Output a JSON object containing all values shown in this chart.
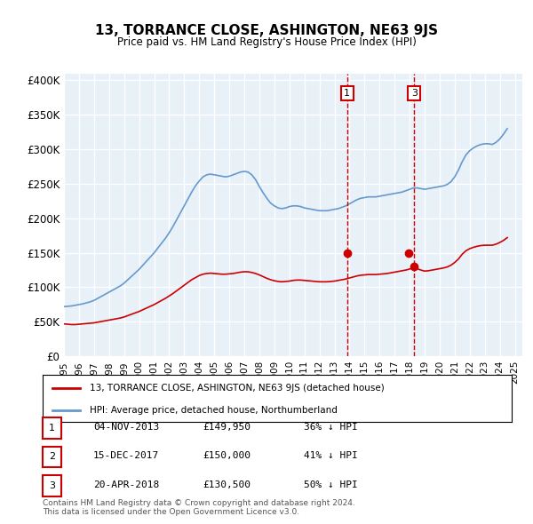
{
  "title": "13, TORRANCE CLOSE, ASHINGTON, NE63 9JS",
  "subtitle": "Price paid vs. HM Land Registry's House Price Index (HPI)",
  "ylabel_ticks": [
    "£0",
    "£50K",
    "£100K",
    "£150K",
    "£200K",
    "£250K",
    "£300K",
    "£350K",
    "£400K"
  ],
  "ytick_values": [
    0,
    50000,
    100000,
    150000,
    200000,
    250000,
    300000,
    350000,
    400000
  ],
  "ylim": [
    0,
    410000
  ],
  "xlim_start": 1995.0,
  "xlim_end": 2025.5,
  "background_color": "#e8f0f8",
  "plot_bg_color": "#e8f0f8",
  "grid_color": "#ffffff",
  "red_line_color": "#cc0000",
  "blue_line_color": "#6699cc",
  "annotation_color": "#cc0000",
  "vline_color": "#cc0000",
  "legend_label_red": "13, TORRANCE CLOSE, ASHINGTON, NE63 9JS (detached house)",
  "legend_label_blue": "HPI: Average price, detached house, Northumberland",
  "transactions": [
    {
      "num": 1,
      "date": "04-NOV-2013",
      "price": "£149,950",
      "pct": "36% ↓ HPI",
      "year": 2013.84
    },
    {
      "num": 2,
      "date": "15-DEC-2017",
      "price": "£150,000",
      "pct": "41% ↓ HPI",
      "year": 2017.95
    },
    {
      "num": 3,
      "date": "20-APR-2018",
      "price": "£130,500",
      "pct": "50% ↓ HPI",
      "year": 2018.3
    }
  ],
  "transaction_marker_values": [
    149950,
    150000,
    130500
  ],
  "footer": "Contains HM Land Registry data © Crown copyright and database right 2024.\nThis data is licensed under the Open Government Licence v3.0.",
  "hpi_x": [
    1995,
    1995.25,
    1995.5,
    1995.75,
    1996,
    1996.25,
    1996.5,
    1996.75,
    1997,
    1997.25,
    1997.5,
    1997.75,
    1998,
    1998.25,
    1998.5,
    1998.75,
    1999,
    1999.25,
    1999.5,
    1999.75,
    2000,
    2000.25,
    2000.5,
    2000.75,
    2001,
    2001.25,
    2001.5,
    2001.75,
    2002,
    2002.25,
    2002.5,
    2002.75,
    2003,
    2003.25,
    2003.5,
    2003.75,
    2004,
    2004.25,
    2004.5,
    2004.75,
    2005,
    2005.25,
    2005.5,
    2005.75,
    2006,
    2006.25,
    2006.5,
    2006.75,
    2007,
    2007.25,
    2007.5,
    2007.75,
    2008,
    2008.25,
    2008.5,
    2008.75,
    2009,
    2009.25,
    2009.5,
    2009.75,
    2010,
    2010.25,
    2010.5,
    2010.75,
    2011,
    2011.25,
    2011.5,
    2011.75,
    2012,
    2012.25,
    2012.5,
    2012.75,
    2013,
    2013.25,
    2013.5,
    2013.75,
    2014,
    2014.25,
    2014.5,
    2014.75,
    2015,
    2015.25,
    2015.5,
    2015.75,
    2016,
    2016.25,
    2016.5,
    2016.75,
    2017,
    2017.25,
    2017.5,
    2017.75,
    2018,
    2018.25,
    2018.5,
    2018.75,
    2019,
    2019.25,
    2019.5,
    2019.75,
    2020,
    2020.25,
    2020.5,
    2020.75,
    2021,
    2021.25,
    2021.5,
    2021.75,
    2022,
    2022.25,
    2022.5,
    2022.75,
    2023,
    2023.25,
    2023.5,
    2023.75,
    2024,
    2024.25,
    2024.5
  ],
  "hpi_y": [
    72000,
    72500,
    73000,
    74000,
    75000,
    76000,
    77500,
    79000,
    81000,
    84000,
    87000,
    90000,
    93000,
    96000,
    99000,
    102000,
    106000,
    111000,
    116000,
    121000,
    126000,
    132000,
    138000,
    144000,
    150000,
    157000,
    164000,
    171000,
    179000,
    188000,
    198000,
    208000,
    218000,
    228000,
    238000,
    247000,
    254000,
    260000,
    263000,
    264000,
    263000,
    262000,
    261000,
    260000,
    261000,
    263000,
    265000,
    267000,
    268000,
    267000,
    263000,
    256000,
    246000,
    237000,
    229000,
    222000,
    218000,
    215000,
    214000,
    215000,
    217000,
    218000,
    218000,
    217000,
    215000,
    214000,
    213000,
    212000,
    211000,
    211000,
    211000,
    212000,
    213000,
    214000,
    216000,
    218000,
    221000,
    224000,
    227000,
    229000,
    230000,
    231000,
    231000,
    231000,
    232000,
    233000,
    234000,
    235000,
    236000,
    237000,
    238000,
    240000,
    242000,
    244000,
    244000,
    243000,
    242000,
    243000,
    244000,
    245000,
    246000,
    247000,
    249000,
    253000,
    260000,
    270000,
    282000,
    292000,
    298000,
    302000,
    305000,
    307000,
    308000,
    308000,
    307000,
    310000,
    315000,
    322000,
    330000
  ],
  "red_x": [
    1995,
    1995.25,
    1995.5,
    1995.75,
    1996,
    1996.25,
    1996.5,
    1996.75,
    1997,
    1997.25,
    1997.5,
    1997.75,
    1998,
    1998.25,
    1998.5,
    1998.75,
    1999,
    1999.25,
    1999.5,
    1999.75,
    2000,
    2000.25,
    2000.5,
    2000.75,
    2001,
    2001.25,
    2001.5,
    2001.75,
    2002,
    2002.25,
    2002.5,
    2002.75,
    2003,
    2003.25,
    2003.5,
    2003.75,
    2004,
    2004.25,
    2004.5,
    2004.75,
    2005,
    2005.25,
    2005.5,
    2005.75,
    2006,
    2006.25,
    2006.5,
    2006.75,
    2007,
    2007.25,
    2007.5,
    2007.75,
    2008,
    2008.25,
    2008.5,
    2008.75,
    2009,
    2009.25,
    2009.5,
    2009.75,
    2010,
    2010.25,
    2010.5,
    2010.75,
    2011,
    2011.25,
    2011.5,
    2011.75,
    2012,
    2012.25,
    2012.5,
    2012.75,
    2013,
    2013.25,
    2013.5,
    2013.75,
    2014,
    2014.25,
    2014.5,
    2014.75,
    2015,
    2015.25,
    2015.5,
    2015.75,
    2016,
    2016.25,
    2016.5,
    2016.75,
    2017,
    2017.25,
    2017.5,
    2017.75,
    2018,
    2018.25,
    2018.5,
    2018.75,
    2019,
    2019.25,
    2019.5,
    2019.75,
    2020,
    2020.25,
    2020.5,
    2020.75,
    2021,
    2021.25,
    2021.5,
    2021.75,
    2022,
    2022.25,
    2022.5,
    2022.75,
    2023,
    2023.25,
    2023.5,
    2023.75,
    2024,
    2024.25,
    2024.5
  ],
  "red_y": [
    47000,
    46500,
    46000,
    46000,
    46500,
    47000,
    47500,
    48000,
    48500,
    49500,
    50500,
    51500,
    52500,
    53500,
    54500,
    55500,
    57000,
    59000,
    61000,
    63000,
    65000,
    67500,
    70000,
    72500,
    75000,
    78000,
    81000,
    84000,
    87500,
    91000,
    95000,
    99000,
    103000,
    107000,
    111000,
    114000,
    117000,
    119000,
    120000,
    120500,
    120000,
    119500,
    119000,
    119000,
    119500,
    120000,
    121000,
    122000,
    122500,
    122500,
    121500,
    120000,
    118000,
    115500,
    113000,
    111000,
    109500,
    108500,
    108000,
    108500,
    109000,
    110000,
    110500,
    110500,
    110000,
    109500,
    109000,
    108500,
    108000,
    108000,
    108000,
    108500,
    109000,
    110000,
    111000,
    112000,
    113500,
    115000,
    116500,
    117500,
    118000,
    118500,
    118500,
    118500,
    119000,
    119500,
    120000,
    121000,
    122000,
    123000,
    124000,
    125000,
    126500,
    128000,
    127000,
    125000,
    123500,
    124000,
    125000,
    126000,
    127000,
    128000,
    129500,
    132000,
    136000,
    141000,
    148000,
    153000,
    156000,
    158000,
    159500,
    160500,
    161000,
    161000,
    161000,
    162500,
    165000,
    168000,
    172000
  ]
}
